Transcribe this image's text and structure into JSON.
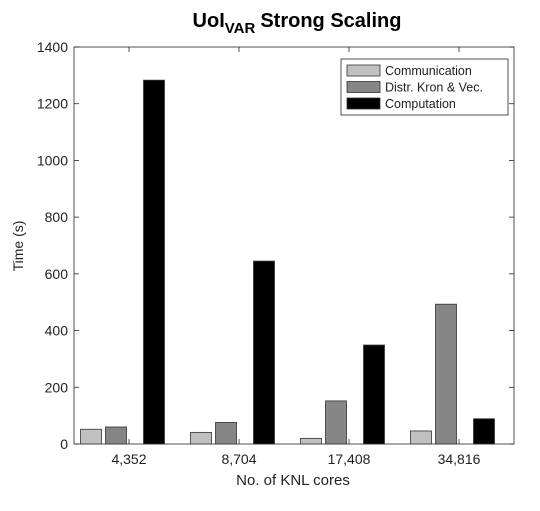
{
  "chart_data": {
    "type": "bar",
    "title": {
      "main": "UoI",
      "subscript": "VAR",
      "rest": "Strong Scaling"
    },
    "xlabel": "No. of KNL cores",
    "ylabel": "Time (s)",
    "ylim": [
      0,
      1400
    ],
    "yticks": [
      "0",
      "200",
      "400",
      "600",
      "800",
      "1000",
      "1200",
      "1400"
    ],
    "categories": [
      "4,352",
      "8,704",
      "17,408",
      "34,816"
    ],
    "legend_position": "top-right",
    "grid": false,
    "series": [
      {
        "name": "Communication",
        "color": "#c0c0c0",
        "values": [
          52,
          41,
          20,
          46
        ]
      },
      {
        "name": "Distr. Kron & Vec.",
        "color": "#868686",
        "values": [
          60,
          76,
          152,
          493
        ]
      },
      {
        "name": "Computation",
        "color": "#000000",
        "values": [
          1283,
          645,
          349,
          89
        ]
      }
    ]
  }
}
